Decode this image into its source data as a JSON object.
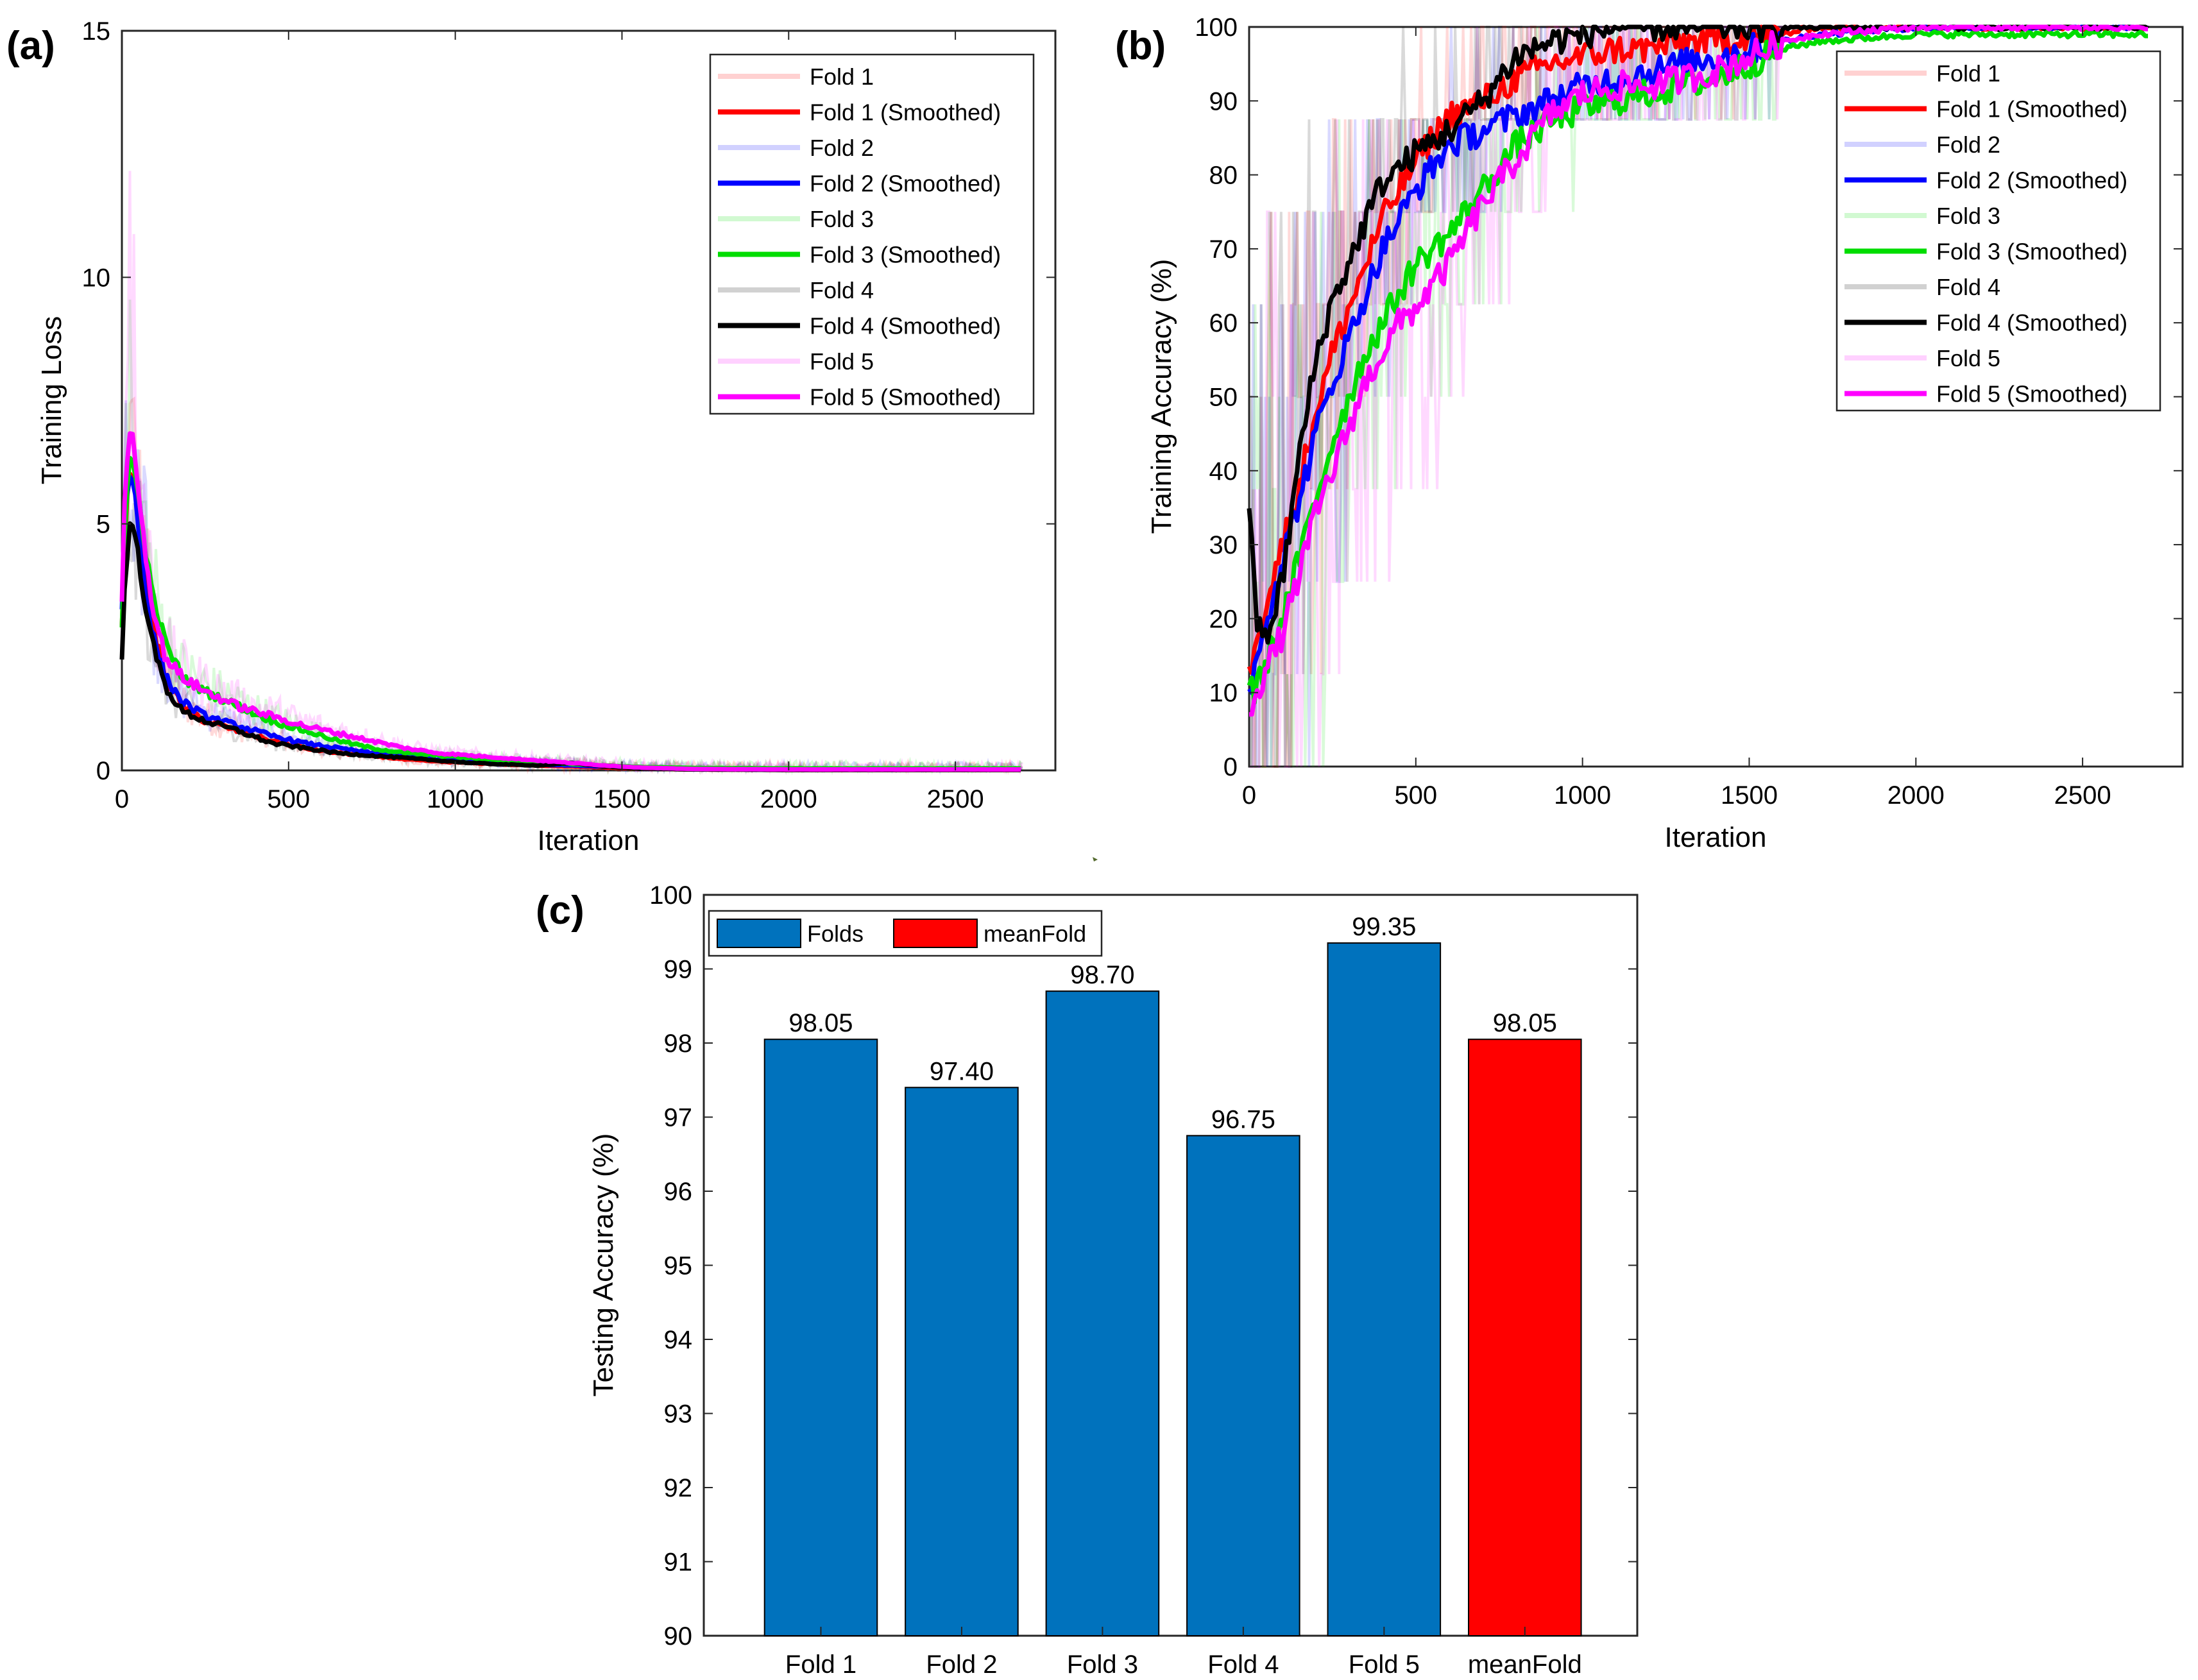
{
  "chart_data": [
    {
      "id": "a",
      "panel_label": "(a)",
      "type": "line",
      "xlabel": "Iteration",
      "ylabel": "Training Loss",
      "xlim": [
        0,
        2800
      ],
      "ylim": [
        0,
        15
      ],
      "xticks": [
        0,
        500,
        1000,
        1500,
        2000,
        2500
      ],
      "yticks": [
        0,
        5,
        10,
        15
      ],
      "legend_position": "top-right",
      "series": [
        {
          "name": "Fold 1",
          "raw_name": "Fold 1",
          "smooth_name": "Fold 1 (Smoothed)",
          "color": "#ff0000",
          "x": [
            0,
            10,
            25,
            40,
            60,
            90,
            130,
            180,
            250,
            350,
            450,
            550,
            650,
            750,
            850,
            950,
            1050,
            1150,
            1250,
            1350,
            1450,
            1550,
            1700,
            2000,
            2300,
            2700
          ],
          "y": [
            3.0,
            5.0,
            6.2,
            5.8,
            4.5,
            3.0,
            1.9,
            1.3,
            1.0,
            0.8,
            0.6,
            0.45,
            0.35,
            0.3,
            0.22,
            0.18,
            0.15,
            0.12,
            0.1,
            0.08,
            0.06,
            0.04,
            0.02,
            0.01,
            0.01,
            0.01
          ]
        },
        {
          "name": "Fold 2",
          "raw_name": "Fold 2",
          "smooth_name": "Fold 2 (Smoothed)",
          "color": "#0000ff",
          "x": [
            0,
            10,
            25,
            40,
            60,
            90,
            130,
            180,
            250,
            350,
            450,
            550,
            650,
            750,
            850,
            950,
            1050,
            1150,
            1250,
            1350,
            1450,
            1550,
            1700,
            2000,
            2300,
            2700
          ],
          "y": [
            3.2,
            5.4,
            6.0,
            5.6,
            4.2,
            2.8,
            1.9,
            1.4,
            1.1,
            0.9,
            0.7,
            0.55,
            0.45,
            0.35,
            0.28,
            0.22,
            0.18,
            0.15,
            0.12,
            0.1,
            0.08,
            0.05,
            0.03,
            0.02,
            0.02,
            0.02
          ]
        },
        {
          "name": "Fold 3",
          "raw_name": "Fold 3",
          "smooth_name": "Fold 3 (Smoothed)",
          "color": "#00dd00",
          "x": [
            0,
            10,
            25,
            40,
            60,
            90,
            130,
            180,
            250,
            350,
            450,
            550,
            650,
            750,
            850,
            950,
            1050,
            1150,
            1250,
            1350,
            1450,
            1550,
            1700,
            2000,
            2300,
            2700
          ],
          "y": [
            3.0,
            5.2,
            6.4,
            6.0,
            5.0,
            3.6,
            2.6,
            1.9,
            1.6,
            1.3,
            1.0,
            0.8,
            0.6,
            0.45,
            0.35,
            0.3,
            0.25,
            0.2,
            0.16,
            0.13,
            0.1,
            0.07,
            0.05,
            0.04,
            0.04,
            0.04
          ]
        },
        {
          "name": "Fold 4",
          "raw_name": "Fold 4",
          "smooth_name": "Fold 4 (Smoothed)",
          "color": "#000000",
          "x": [
            0,
            10,
            25,
            40,
            60,
            90,
            130,
            180,
            250,
            350,
            450,
            550,
            650,
            750,
            850,
            950,
            1050,
            1150,
            1250,
            1350,
            1450,
            1550,
            1700,
            2000,
            2300,
            2700
          ],
          "y": [
            2.3,
            4.0,
            5.0,
            4.8,
            3.8,
            2.6,
            1.7,
            1.2,
            1.0,
            0.8,
            0.55,
            0.45,
            0.35,
            0.3,
            0.25,
            0.2,
            0.15,
            0.12,
            0.1,
            0.15,
            0.08,
            0.04,
            0.02,
            0.01,
            0.01,
            0.01
          ]
        },
        {
          "name": "Fold 5",
          "raw_name": "Fold 5",
          "smooth_name": "Fold 5 (Smoothed)",
          "color": "#ff00ff",
          "x": [
            0,
            10,
            25,
            40,
            60,
            90,
            130,
            180,
            250,
            350,
            450,
            550,
            650,
            750,
            850,
            950,
            1050,
            1150,
            1250,
            1350,
            1450,
            1550,
            1700,
            2000,
            2300,
            2700
          ],
          "y": [
            3.5,
            5.8,
            7.0,
            6.4,
            5.0,
            3.4,
            2.3,
            1.9,
            1.6,
            1.3,
            1.1,
            0.9,
            0.75,
            0.6,
            0.45,
            0.35,
            0.3,
            0.25,
            0.2,
            0.15,
            0.1,
            0.06,
            0.03,
            0.02,
            0.02,
            0.02
          ]
        }
      ]
    },
    {
      "id": "b",
      "panel_label": "(b)",
      "type": "line",
      "xlabel": "Iteration",
      "ylabel": "Training Accuracy (%)",
      "xlim": [
        0,
        2800
      ],
      "ylim": [
        0,
        100
      ],
      "xticks": [
        0,
        500,
        1000,
        1500,
        2000,
        2500
      ],
      "yticks": [
        0,
        10,
        20,
        30,
        40,
        50,
        60,
        70,
        80,
        90,
        100
      ],
      "legend_position": "top-right",
      "series": [
        {
          "name": "Fold 1",
          "raw_name": "Fold 1",
          "smooth_name": "Fold 1 (Smoothed)",
          "color": "#ff0000",
          "x": [
            0,
            20,
            50,
            100,
            150,
            200,
            250,
            300,
            350,
            400,
            450,
            500,
            600,
            700,
            800,
            900,
            1000,
            1100,
            1200,
            1300,
            1400,
            1500,
            1600,
            1700,
            2000,
            2300,
            2700
          ],
          "y": [
            12,
            18,
            22,
            30,
            38,
            48,
            56,
            62,
            68,
            74,
            78,
            82,
            88,
            90,
            93,
            95,
            96,
            97,
            97,
            98,
            98,
            99,
            99,
            100,
            100,
            100,
            100
          ]
        },
        {
          "name": "Fold 2",
          "raw_name": "Fold 2",
          "smooth_name": "Fold 2 (Smoothed)",
          "color": "#0000ff",
          "x": [
            0,
            20,
            50,
            100,
            150,
            200,
            250,
            300,
            350,
            400,
            450,
            500,
            600,
            700,
            800,
            900,
            1000,
            1100,
            1200,
            1300,
            1400,
            1500,
            1600,
            1700,
            2000,
            2300,
            2700
          ],
          "y": [
            10,
            14,
            20,
            28,
            36,
            45,
            52,
            58,
            64,
            70,
            74,
            78,
            84,
            86,
            88,
            90,
            92,
            93,
            94,
            95,
            96,
            97,
            98,
            99,
            100,
            100,
            100
          ]
        },
        {
          "name": "Fold 3",
          "raw_name": "Fold 3",
          "smooth_name": "Fold 3 (Smoothed)",
          "color": "#00dd00",
          "x": [
            0,
            20,
            50,
            100,
            150,
            200,
            250,
            300,
            350,
            400,
            450,
            500,
            600,
            700,
            800,
            900,
            1000,
            1100,
            1200,
            1300,
            1400,
            1500,
            1600,
            1700,
            2000,
            2300,
            2700
          ],
          "y": [
            11,
            10,
            14,
            20,
            28,
            36,
            44,
            50,
            56,
            60,
            64,
            68,
            72,
            78,
            84,
            87,
            89,
            90,
            91,
            92,
            93,
            95,
            97,
            98,
            99,
            99,
            99
          ]
        },
        {
          "name": "Fold 4",
          "raw_name": "Fold 4",
          "smooth_name": "Fold 4 (Smoothed)",
          "color": "#000000",
          "x": [
            0,
            20,
            50,
            100,
            150,
            200,
            250,
            300,
            350,
            400,
            450,
            500,
            600,
            700,
            800,
            900,
            1000,
            1100,
            1200,
            1300,
            1400,
            1500,
            1600,
            1700,
            2000,
            2300,
            2700
          ],
          "y": [
            36,
            20,
            17,
            25,
            42,
            55,
            63,
            68,
            74,
            79,
            81,
            83,
            86,
            90,
            96,
            98,
            99,
            100,
            100,
            100,
            100,
            100,
            100,
            100,
            100,
            100,
            100
          ]
        },
        {
          "name": "Fold 5",
          "raw_name": "Fold 5",
          "smooth_name": "Fold 5 (Smoothed)",
          "color": "#ff00ff",
          "x": [
            0,
            20,
            50,
            100,
            150,
            200,
            250,
            300,
            350,
            400,
            450,
            500,
            600,
            700,
            800,
            900,
            1000,
            1100,
            1200,
            1300,
            1400,
            1500,
            1600,
            1700,
            2000,
            2300,
            2700
          ],
          "y": [
            8,
            10,
            13,
            18,
            26,
            34,
            40,
            46,
            52,
            56,
            60,
            62,
            68,
            76,
            82,
            88,
            91,
            92,
            92,
            93,
            94,
            96,
            98,
            99,
            100,
            100,
            100
          ]
        }
      ]
    },
    {
      "id": "c",
      "panel_label": "(c)",
      "type": "bar",
      "ylabel": "Testing Accuracy (%)",
      "categories": [
        "Fold 1",
        "Fold 2",
        "Fold 3",
        "Fold 4",
        "Fold 5",
        "meanFold"
      ],
      "values": [
        98.05,
        97.4,
        98.7,
        96.75,
        99.35,
        98.05
      ],
      "value_labels": [
        "98.05",
        "97.40",
        "98.70",
        "96.75",
        "99.35",
        "98.05"
      ],
      "series_of_bar": [
        "Folds",
        "Folds",
        "Folds",
        "Folds",
        "Folds",
        "meanFold"
      ],
      "ylim": [
        90,
        100
      ],
      "yticks": [
        90,
        91,
        92,
        93,
        94,
        95,
        96,
        97,
        98,
        99,
        100
      ],
      "legend_position": "top-left",
      "legend": [
        {
          "name": "Folds",
          "color": "#0072bd"
        },
        {
          "name": "meanFold",
          "color": "#ff0000"
        }
      ]
    }
  ]
}
